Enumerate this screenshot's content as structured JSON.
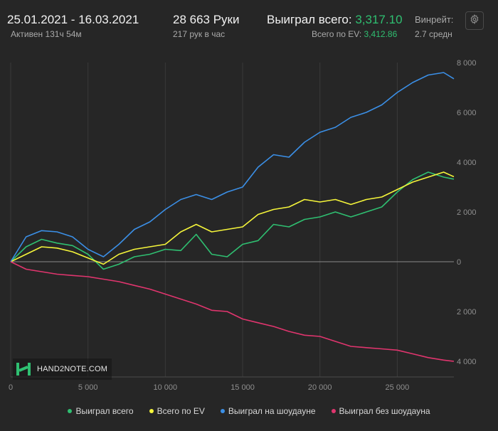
{
  "header": {
    "date_range": "25.01.2021 - 16.03.2021",
    "active_time": "Активен 131ч 54м",
    "hands": "28 663 Руки",
    "hands_rate": "217 рук в час",
    "won_total_label": "Выиграл всего:",
    "won_total_value": "3,317.10",
    "ev_total_label": "Всего по EV:",
    "ev_total_value": "3,412.86",
    "winrate_label": "Винрейт:",
    "winrate_value": "2.7 средн",
    "settings_icon": "gear-icon"
  },
  "logo": {
    "text": "HAND2NOTE.COM"
  },
  "colors": {
    "background": "#262626",
    "grid": "#3a3a3a",
    "zero_line": "#8a8a8a",
    "won_total": "#2fbf71",
    "ev_total": "#f5f53a",
    "showdown": "#3b8fe6",
    "non_showdown": "#e0356e"
  },
  "chart_data": {
    "type": "line",
    "xlim": [
      0,
      28663
    ],
    "ylim": [
      -4000,
      8000
    ],
    "x_ticks": [
      0,
      5000,
      10000,
      15000,
      20000,
      25000
    ],
    "x_tick_labels": [
      "0",
      "5 000",
      "10 000",
      "15 000",
      "20 000",
      "25 000"
    ],
    "y_ticks": [
      8000,
      6000,
      4000,
      2000,
      0,
      -2000,
      -4000
    ],
    "y_tick_labels": [
      "8 000",
      "6 000",
      "4 000",
      "2 000",
      "0",
      "2 000",
      "4 000"
    ],
    "grid": "vertical",
    "legend_position": "bottom",
    "x": [
      0,
      1000,
      2000,
      3000,
      4000,
      5000,
      6000,
      7000,
      8000,
      9000,
      10000,
      11000,
      12000,
      13000,
      14000,
      15000,
      16000,
      17000,
      18000,
      19000,
      20000,
      21000,
      22000,
      23000,
      24000,
      25000,
      26000,
      27000,
      28000,
      28663
    ],
    "series": [
      {
        "name": "Выиграл всего",
        "color": "#2fbf71",
        "values": [
          0,
          600,
          900,
          750,
          650,
          300,
          -300,
          -100,
          200,
          300,
          500,
          450,
          1100,
          300,
          200,
          700,
          850,
          1500,
          1400,
          1700,
          1800,
          2000,
          1800,
          2000,
          2200,
          2800,
          3300,
          3600,
          3400,
          3317
        ]
      },
      {
        "name": "Всего по EV",
        "color": "#f5f53a",
        "values": [
          0,
          300,
          600,
          550,
          400,
          150,
          -100,
          300,
          500,
          600,
          700,
          1200,
          1500,
          1200,
          1300,
          1400,
          1900,
          2100,
          2200,
          2500,
          2400,
          2500,
          2300,
          2500,
          2600,
          2900,
          3200,
          3400,
          3600,
          3413
        ]
      },
      {
        "name": "Выиграл на шоудауне",
        "color": "#3b8fe6",
        "values": [
          0,
          1000,
          1250,
          1200,
          1000,
          500,
          200,
          700,
          1300,
          1600,
          2100,
          2500,
          2700,
          2500,
          2800,
          3000,
          3800,
          4300,
          4200,
          4800,
          5200,
          5400,
          5800,
          6000,
          6300,
          6800,
          7200,
          7500,
          7600,
          7350
        ]
      },
      {
        "name": "Выиграл без шоудауна",
        "color": "#e0356e",
        "values": [
          0,
          -300,
          -400,
          -500,
          -550,
          -600,
          -700,
          -800,
          -950,
          -1100,
          -1300,
          -1500,
          -1700,
          -1950,
          -2000,
          -2300,
          -2450,
          -2600,
          -2800,
          -2950,
          -3000,
          -3200,
          -3400,
          -3450,
          -3500,
          -3550,
          -3700,
          -3850,
          -3950,
          -4000
        ]
      }
    ]
  }
}
